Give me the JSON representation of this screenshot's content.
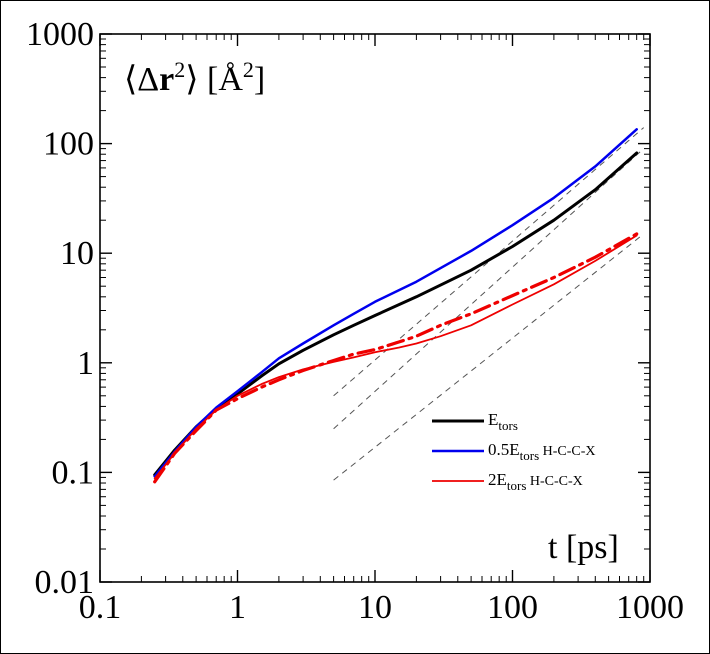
{
  "chart_data": {
    "type": "line",
    "xscale": "log",
    "yscale": "log",
    "xlim": [
      0.1,
      1000
    ],
    "ylim": [
      0.01,
      1000
    ],
    "x_ticks": [
      {
        "value": 0.1,
        "label": "0.1"
      },
      {
        "value": 1,
        "label": "1"
      },
      {
        "value": 10,
        "label": "10"
      },
      {
        "value": 100,
        "label": "100"
      },
      {
        "value": 1000,
        "label": "1000"
      }
    ],
    "y_ticks": [
      {
        "value": 0.01,
        "label": "0.01"
      },
      {
        "value": 0.1,
        "label": "0.1"
      },
      {
        "value": 1,
        "label": "1"
      },
      {
        "value": 10,
        "label": "10"
      },
      {
        "value": 100,
        "label": "100"
      },
      {
        "value": 1000,
        "label": "1000"
      }
    ],
    "xlabel": {
      "main": "t [ps]"
    },
    "ylabel": {
      "open": "⟨Δ",
      "bold": "r",
      "sup1": "2",
      "mid": "⟩ [Å",
      "sup2": "2",
      "close": "]"
    },
    "grid": false,
    "legend_position": "bottom-right",
    "series": [
      {
        "name": "E",
        "name_sub": "tors",
        "name_suffix": "",
        "color": "#000000",
        "width": 3,
        "style": "solid",
        "x": [
          0.25,
          0.35,
          0.5,
          0.7,
          1.0,
          1.5,
          2,
          3,
          5,
          7,
          10,
          20,
          50,
          100,
          200,
          400,
          800
        ],
        "y": [
          0.095,
          0.16,
          0.26,
          0.38,
          0.52,
          0.76,
          0.98,
          1.3,
          1.8,
          2.2,
          2.7,
          4.0,
          7.0,
          11.5,
          20,
          38,
          82
        ]
      },
      {
        "name": "0.5E",
        "name_sub": "tors",
        "name_suffix": " H-C-C-X",
        "color": "#0000ee",
        "width": 2.5,
        "style": "solid",
        "x": [
          0.25,
          0.35,
          0.5,
          0.7,
          1.0,
          1.5,
          2,
          3,
          5,
          7,
          10,
          20,
          50,
          100,
          200,
          400,
          800
        ],
        "y": [
          0.092,
          0.155,
          0.26,
          0.39,
          0.55,
          0.82,
          1.1,
          1.5,
          2.2,
          2.8,
          3.6,
          5.5,
          10.5,
          18,
          32,
          62,
          135
        ]
      },
      {
        "name": "2E",
        "name_sub": "tors",
        "name_suffix": "   H-C-C-X",
        "color": "#ee0000",
        "width": 1.8,
        "style": "solid",
        "x": [
          0.25,
          0.35,
          0.5,
          0.7,
          1.0,
          1.5,
          2,
          3,
          5,
          7,
          10,
          15,
          20,
          30,
          50,
          100,
          200,
          400,
          800
        ],
        "y": [
          0.088,
          0.15,
          0.25,
          0.37,
          0.5,
          0.64,
          0.74,
          0.87,
          1.02,
          1.12,
          1.25,
          1.38,
          1.5,
          1.75,
          2.2,
          3.4,
          5.2,
          8.5,
          14.5
        ]
      },
      {
        "name": "",
        "name_sub": "",
        "name_suffix": "",
        "color": "#ee0000",
        "width": 3.2,
        "style": "dashdot",
        "x": [
          0.25,
          0.35,
          0.5,
          0.7,
          1.0,
          1.5,
          2,
          3,
          5,
          7,
          10,
          15,
          20,
          30,
          50,
          100,
          200,
          400,
          800
        ],
        "y": [
          0.082,
          0.15,
          0.24,
          0.37,
          0.47,
          0.6,
          0.7,
          0.85,
          1.05,
          1.2,
          1.32,
          1.55,
          1.75,
          2.2,
          2.8,
          4.1,
          6.0,
          9.2,
          15.0
        ]
      }
    ],
    "reference_lines": [
      {
        "x": [
          5,
          900
        ],
        "y": [
          0.5,
          140
        ]
      },
      {
        "x": [
          5,
          900
        ],
        "y": [
          0.25,
          90
        ]
      },
      {
        "x": [
          5,
          900
        ],
        "y": [
          0.085,
          15
        ]
      }
    ]
  }
}
